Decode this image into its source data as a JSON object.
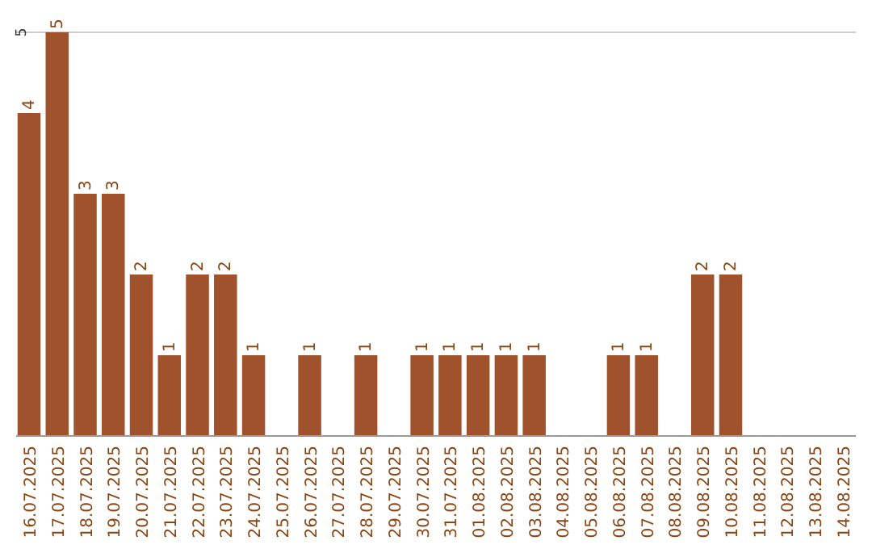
{
  "chart_data": {
    "type": "bar",
    "categories": [
      "16.07.2025",
      "17.07.2025",
      "18.07.2025",
      "19.07.2025",
      "20.07.2025",
      "21.07.2025",
      "22.07.2025",
      "23.07.2025",
      "24.07.2025",
      "25.07.2025",
      "26.07.2025",
      "27.07.2025",
      "28.07.2025",
      "29.07.2025",
      "30.07.2025",
      "31.07.2025",
      "01.08.2025",
      "02.08.2025",
      "03.08.2025",
      "04.08.2025",
      "05.08.2025",
      "06.08.2025",
      "07.08.2025",
      "08.08.2025",
      "09.08.2025",
      "10.08.2025",
      "11.08.2025",
      "12.08.2025",
      "13.08.2025",
      "14.08.2025"
    ],
    "values": [
      4,
      5,
      3,
      3,
      2,
      1,
      2,
      2,
      1,
      0,
      1,
      0,
      1,
      0,
      1,
      1,
      1,
      1,
      1,
      0,
      0,
      1,
      1,
      0,
      2,
      2,
      0,
      0,
      0,
      0
    ],
    "value_labels": [
      "4",
      "5",
      "3",
      "3",
      "2",
      "1",
      "2",
      "2",
      "1",
      null,
      "1",
      null,
      "1",
      null,
      "1",
      "1",
      "1",
      "1",
      "1",
      null,
      null,
      "1",
      "1",
      null,
      "2",
      "2",
      null,
      null,
      null,
      null
    ],
    "color": "#a0522d",
    "ylim": [
      0,
      5
    ],
    "yticks": [
      5
    ],
    "ref_lines": [
      {
        "axis": "y",
        "value": 5,
        "color": "#cccccc"
      }
    ]
  }
}
